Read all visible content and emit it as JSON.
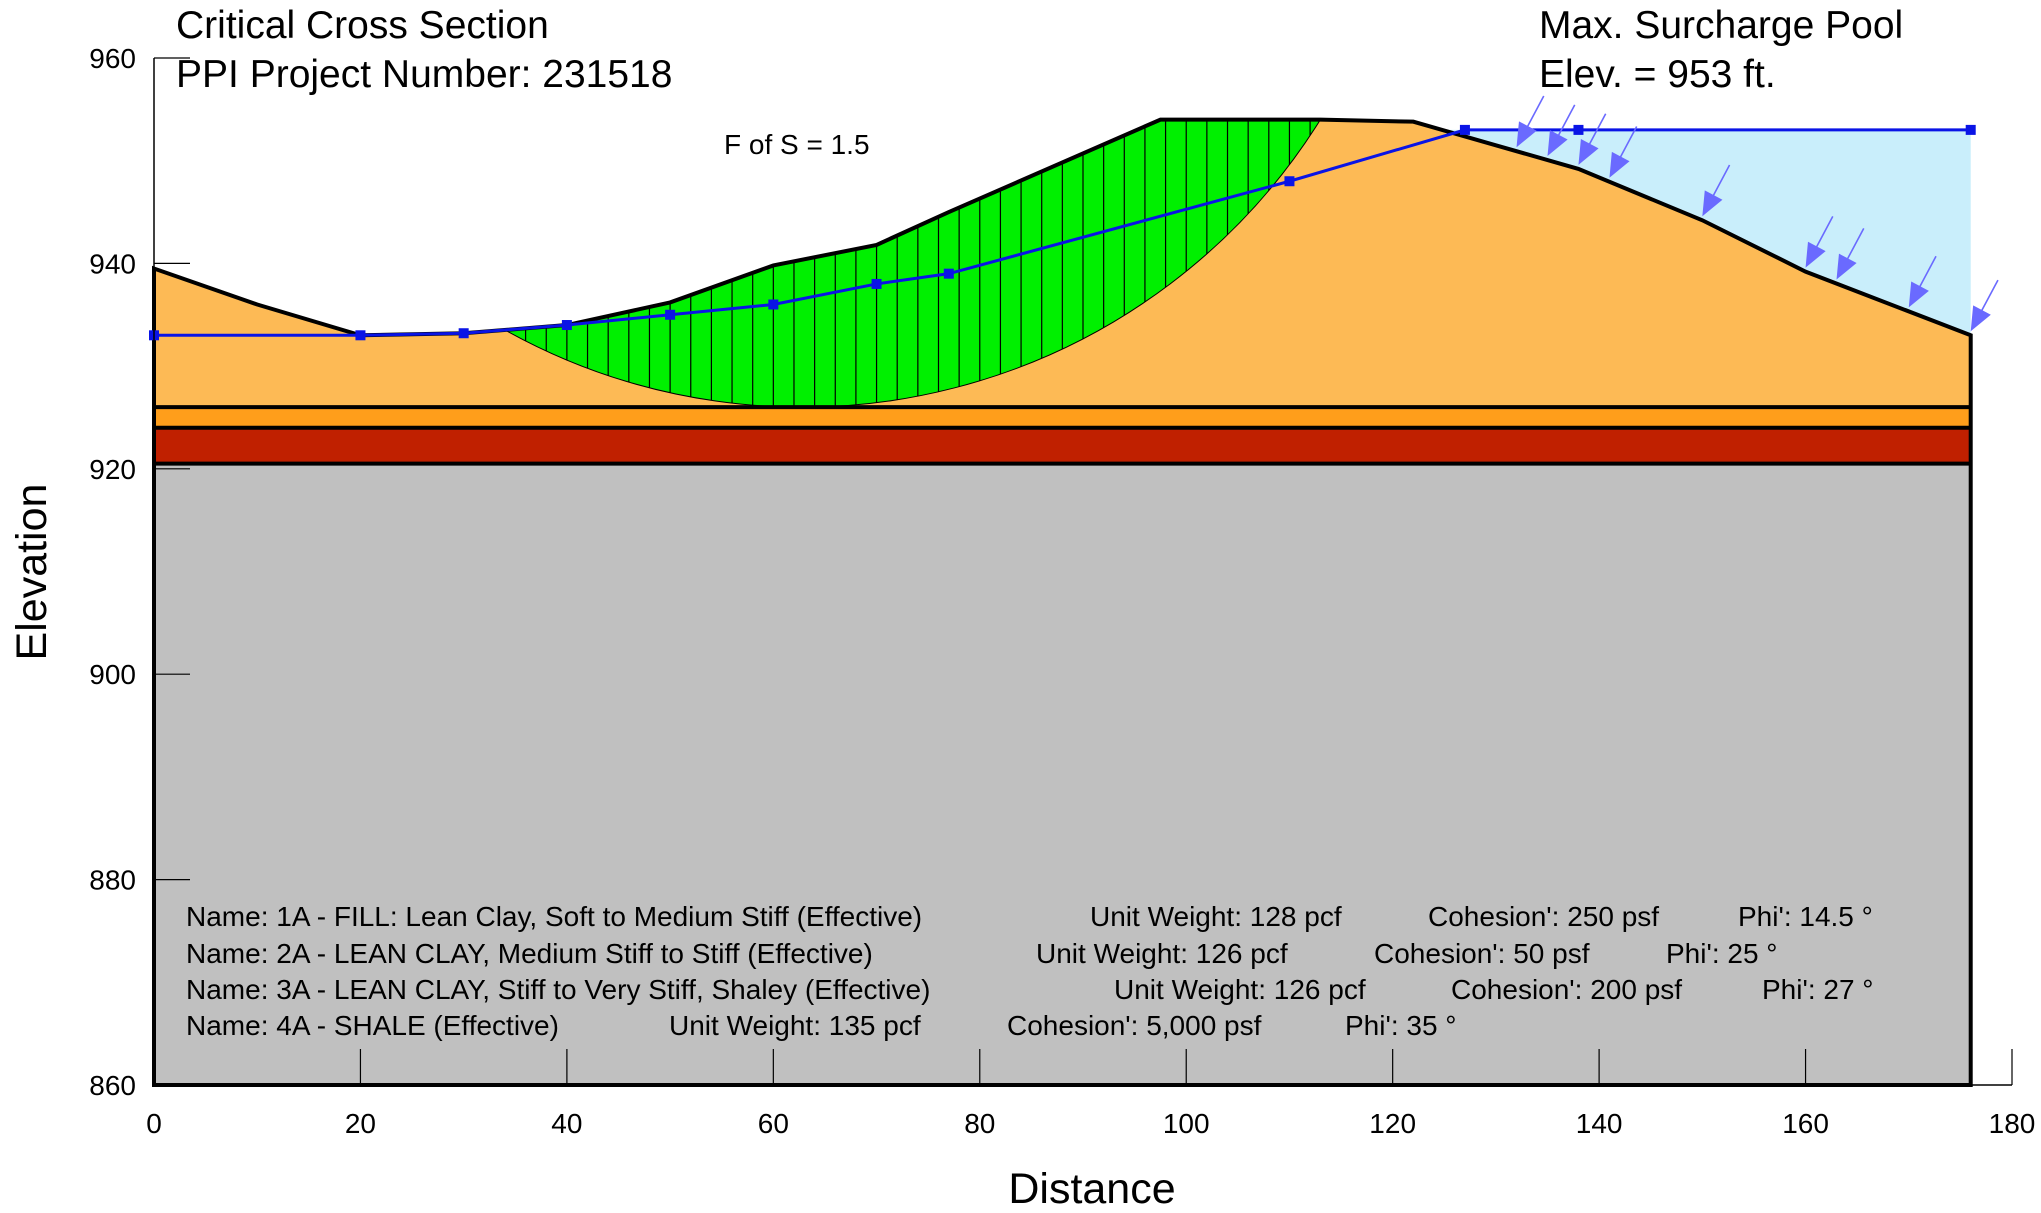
{
  "title_lines": [
    "Critical Cross Section",
    "PPI Project Number: 231518"
  ],
  "pool_note_lines": [
    "Max. Surcharge Pool",
    "Elev. = 953 ft."
  ],
  "factor_of_safety_label": "F of S =  1.5",
  "chart_data": {
    "type": "diagram",
    "xlabel": "Distance",
    "ylabel": "Elevation",
    "xlim": [
      0,
      180
    ],
    "ylim": [
      860,
      960
    ],
    "x_ticks": [
      0,
      20,
      40,
      60,
      80,
      100,
      120,
      140,
      160,
      180
    ],
    "y_ticks": [
      860,
      880,
      900,
      920,
      940,
      960
    ],
    "colors": {
      "fill_clay": "#FDBA55",
      "lean_clay_medium": "#FF9E1B",
      "lean_clay_stiff": "#C02000",
      "shale": "#C0C0C0",
      "slip_mass": "#00F000",
      "water": "#C9EEFB",
      "water_line": "#0A14E6",
      "surcharge_arrow": "#6A6AFF"
    },
    "ground_surface": [
      [
        0,
        939.5
      ],
      [
        10,
        936
      ],
      [
        20,
        933
      ],
      [
        30,
        933.2
      ],
      [
        40,
        934
      ],
      [
        50,
        936.2
      ],
      [
        60,
        939.8
      ],
      [
        70,
        941.8
      ],
      [
        77,
        945
      ],
      [
        97.5,
        954
      ],
      [
        113,
        954
      ],
      [
        122,
        953.8
      ],
      [
        130,
        951.5
      ],
      [
        138,
        949.2
      ],
      [
        150,
        944.2
      ],
      [
        160,
        939.2
      ],
      [
        176,
        933
      ]
    ],
    "layer_boundaries": {
      "top_of_2A": 926,
      "top_of_3A": 924,
      "top_of_4A": 920.5,
      "bottom": 860,
      "right_edge": 176
    },
    "slip_surface": {
      "entry_x": 34,
      "exit_x": 113,
      "lowest_elevation": 926
    },
    "slice_boundaries_x": [
      36,
      38,
      40,
      42,
      44,
      46,
      48,
      50,
      52,
      54,
      56,
      58,
      60,
      62,
      64,
      66,
      68,
      70,
      72,
      74,
      76,
      78,
      80,
      82,
      84,
      86,
      88,
      90,
      92,
      94,
      96,
      98,
      100,
      102,
      104,
      106,
      108,
      110,
      112
    ],
    "piezometric_line": [
      [
        0,
        933
      ],
      [
        20,
        933
      ],
      [
        30,
        933.2
      ],
      [
        40,
        934
      ],
      [
        50,
        935
      ],
      [
        60,
        936
      ],
      [
        70,
        938
      ],
      [
        77,
        939
      ],
      [
        110,
        948
      ],
      [
        127,
        953
      ],
      [
        138,
        953
      ],
      [
        176,
        953
      ]
    ],
    "pool_elevation": 953,
    "surcharge_arrow_x": [
      132,
      135,
      138,
      141,
      150,
      160,
      163,
      170,
      176
    ],
    "materials": [
      {
        "name": "Name: 1A - FILL: Lean Clay, Soft to Medium Stiff (Effective)",
        "unit_weight": "Unit Weight: 128 pcf",
        "cohesion": "Cohesion': 250 psf",
        "phi": "Phi': 14.5 °"
      },
      {
        "name": "Name: 2A - LEAN CLAY, Medium Stiff to Stiff (Effective)",
        "unit_weight": "Unit Weight: 126 pcf",
        "cohesion": "Cohesion': 50 psf",
        "phi": "Phi': 25 °"
      },
      {
        "name": "Name: 3A - LEAN CLAY, Stiff to Very Stiff, Shaley (Effective)",
        "unit_weight": "Unit Weight: 126 pcf",
        "cohesion": "Cohesion': 200 psf",
        "phi": "Phi': 27 °"
      },
      {
        "name": "Name: 4A - SHALE (Effective)",
        "unit_weight": "Unit Weight: 135 pcf",
        "cohesion": "Cohesion': 5,000 psf",
        "phi": "Phi': 35 °"
      }
    ]
  }
}
